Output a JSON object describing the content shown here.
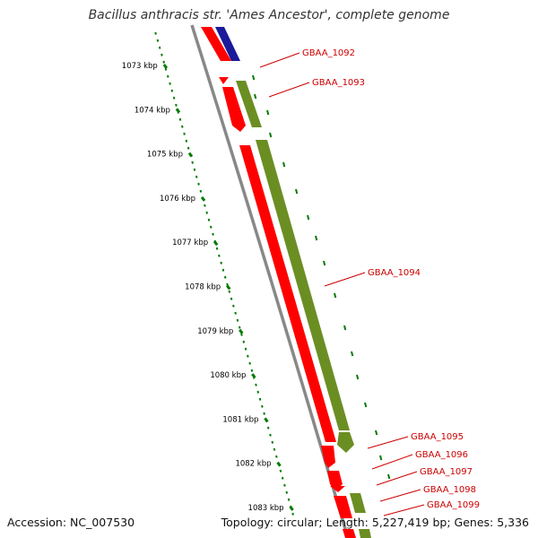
{
  "title": "Bacillus anthracis str. 'Ames Ancestor', complete genome",
  "footer": {
    "accession": "Accession: NC_007530",
    "summary": "Topology: circular; Length: 5,227,419 bp; Genes: 5,336"
  },
  "colors": {
    "backbone": "#888888",
    "gene_red": "#ff0000",
    "gene_green": "#6b8e23",
    "gene_blue": "#1a1a9a",
    "ruler": "#007a00",
    "label": "#cc0000"
  },
  "ruler_labels": [
    "1073 kbp",
    "1074 kbp",
    "1075 kbp",
    "1076 kbp",
    "1077 kbp",
    "1078 kbp",
    "1079 kbp",
    "1080 kbp",
    "1081 kbp",
    "1082 kbp",
    "1083 kbp"
  ],
  "gene_labels": [
    "GBAA_1092",
    "GBAA_1093",
    "GBAA_1094",
    "GBAA_1095",
    "GBAA_1096",
    "GBAA_1097",
    "GBAA_1098",
    "GBAA_1099"
  ]
}
